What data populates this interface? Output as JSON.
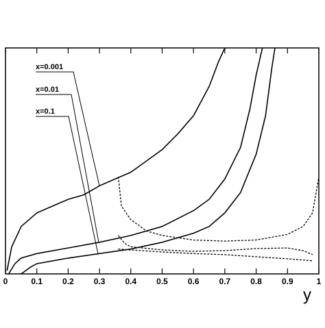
{
  "chart_data": {
    "type": "line",
    "x_label": "y",
    "xlim": [
      0,
      1
    ],
    "ylim": [
      0,
      100
    ],
    "xticks": [
      0,
      0.1,
      0.2,
      0.3,
      0.4,
      0.5,
      0.6,
      0.7,
      0.8,
      0.9,
      1
    ],
    "color": "#000000",
    "series": [
      {
        "name": "x=0.001",
        "dashed": false,
        "x": [
          0.005,
          0.02,
          0.05,
          0.1,
          0.15,
          0.2,
          0.25,
          0.3,
          0.35,
          0.4,
          0.45,
          0.5,
          0.55,
          0.6,
          0.65,
          0.68,
          0.7
        ],
        "values": [
          1.5,
          12,
          21,
          27,
          30,
          33,
          35,
          39,
          42,
          45,
          50,
          55,
          62,
          70,
          83,
          94,
          100
        ]
      },
      {
        "name": "x=0.01",
        "dashed": false,
        "x": [
          0.01,
          0.03,
          0.05,
          0.1,
          0.2,
          0.3,
          0.4,
          0.5,
          0.6,
          0.65,
          0.7,
          0.75,
          0.78,
          0.8,
          0.82
        ],
        "values": [
          0,
          4.5,
          7,
          9,
          11.5,
          14,
          17,
          21,
          28,
          33,
          42,
          56,
          73,
          88,
          100
        ]
      },
      {
        "name": "x=0.1",
        "dashed": false,
        "x": [
          0.05,
          0.08,
          0.1,
          0.2,
          0.3,
          0.4,
          0.5,
          0.6,
          0.65,
          0.7,
          0.75,
          0.8,
          0.83,
          0.85,
          0.86
        ],
        "values": [
          0,
          3,
          4.5,
          7,
          9,
          11,
          14,
          18,
          21,
          27,
          36,
          53,
          70,
          91,
          100
        ]
      },
      {
        "dashed": true,
        "x": [
          0.36,
          0.37,
          0.4,
          0.45,
          0.5,
          0.6,
          0.7,
          0.8,
          0.9,
          0.95,
          0.98,
          1.0
        ],
        "values": [
          43,
          30,
          24,
          19,
          17,
          15,
          14.5,
          15,
          17.5,
          21,
          27,
          43
        ]
      },
      {
        "dashed": true,
        "x": [
          0.36,
          0.38,
          0.4,
          0.5,
          0.6,
          0.7,
          0.8,
          0.9,
          0.95,
          0.98
        ],
        "values": [
          17,
          13.5,
          12,
          10.6,
          10,
          10.3,
          11.2,
          11.5,
          10.3,
          8.5
        ]
      },
      {
        "dashed": true,
        "x": [
          0.36,
          0.4,
          0.5,
          0.6,
          0.7,
          0.8,
          0.9,
          0.98
        ],
        "values": [
          11,
          10.6,
          9.7,
          9,
          8.5,
          7.6,
          6.7,
          5.8
        ]
      }
    ]
  }
}
